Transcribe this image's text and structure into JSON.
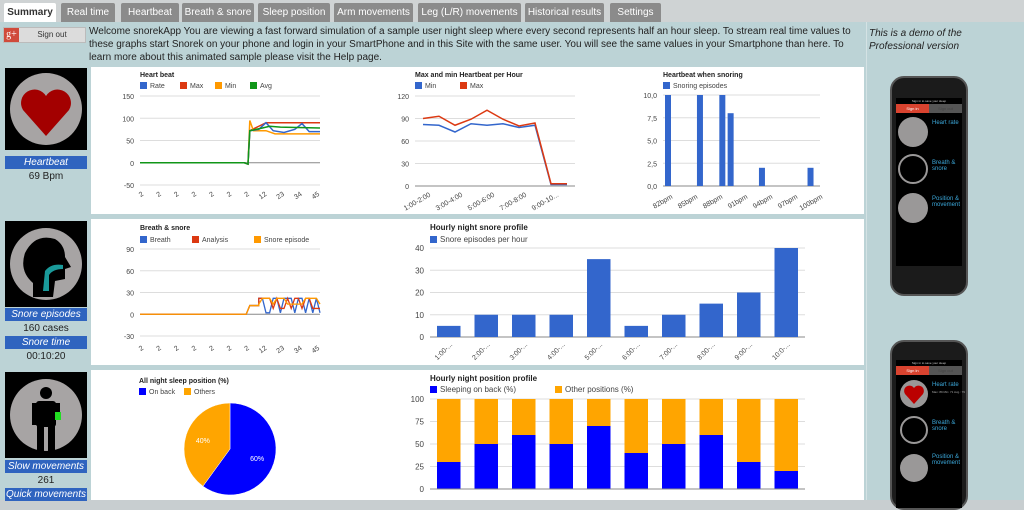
{
  "tabs": [
    {
      "label": "Summary",
      "active": true
    },
    {
      "label": "Real time"
    },
    {
      "label": "Heartbeat"
    },
    {
      "label": "Breath & snore"
    },
    {
      "label": "Sleep position"
    },
    {
      "label": "Arm movements"
    },
    {
      "label": "Leg (L/R) movements"
    },
    {
      "label": "Historical results"
    },
    {
      "label": "Settings"
    }
  ],
  "auth": {
    "gplus": "g+",
    "signout": "Sign out"
  },
  "welcome": "Welcome snorekApp You are viewing a fast forward simulation of a sample user night sleep where every second represents half an hour sleep. To stream real time values to these graphs start Snorek on your phone and login in your SmartPhone and in this Site with the same user. You will see the same values in your Smartphone than here. To learn more about this animated sample please visit the Help page.",
  "demo_note": "This is a demo of the Professional version",
  "stats": {
    "heartbeat_label": "Heartbeat",
    "heartbeat_value": "69 Bpm",
    "snore_label": "Snore episodes",
    "snore_value": "160 cases",
    "snore_time_label": "Snore time",
    "snore_time_value": "00:10:20",
    "slow_label": "Slow movements",
    "slow_value": "261",
    "quick_label": "Quick movements"
  },
  "colors": {
    "blue": "#3366cc",
    "red": "#dc3912",
    "orange": "#ff9900",
    "green": "#109618",
    "pure_blue": "#0000ff",
    "pie_orange": "#ffa500"
  },
  "chart_data": [
    {
      "type": "line",
      "title": "Heart beat",
      "series": [
        {
          "name": "Rate"
        },
        {
          "name": "Max"
        },
        {
          "name": "Min"
        },
        {
          "name": "Avg"
        }
      ],
      "yticks": [
        "150",
        "100",
        "50",
        "0",
        "-50"
      ],
      "ylim": [
        -50,
        150
      ],
      "xticks": [
        "2",
        "2",
        "2",
        "2",
        "2",
        "2",
        "2",
        "12",
        "23",
        "34",
        "45"
      ]
    },
    {
      "type": "line",
      "title": "Max and min Heartbeat per Hour",
      "categories": [
        "1:00-2:00",
        "2:00-3:00",
        "3:00-4:00",
        "4:00-5:00",
        "5:00-6:00",
        "6:00-7:00",
        "7:00-8:00",
        "8:00-9:00",
        "9:00-10:00",
        "10:00-11:00"
      ],
      "xticks": [
        "1:00-2:00",
        "3:00-4:00",
        "5:00-6:00",
        "7:00-8:00",
        "9:00-10..."
      ],
      "series": [
        {
          "name": "Min",
          "values": [
            82,
            81,
            72,
            83,
            81,
            83,
            78,
            81,
            2,
            2
          ]
        },
        {
          "name": "Max",
          "values": [
            90,
            93,
            81,
            89,
            101,
            89,
            80,
            84,
            3,
            3
          ]
        }
      ],
      "yticks": [
        "120",
        "90",
        "60",
        "30",
        "0"
      ],
      "ylim": [
        0,
        120
      ]
    },
    {
      "type": "bar",
      "title": "Heartbeat when snoring",
      "legend": "Snoring episodes",
      "categories": [
        "82bpm",
        "85bpm",
        "88bpm",
        "91bpm",
        "94bpm",
        "97bpm",
        "100bpm"
      ],
      "bars": [
        {
          "x": 82,
          "v": 10
        },
        {
          "x": 87,
          "v": 10
        },
        {
          "x": 90.5,
          "v": 10
        },
        {
          "x": 91.8,
          "v": 8
        },
        {
          "x": 96.7,
          "v": 2
        },
        {
          "x": 104.3,
          "v": 2
        }
      ],
      "yticks": [
        "10,0",
        "7,5",
        "5,0",
        "2,5",
        "0,0"
      ],
      "ylim": [
        0,
        10
      ]
    },
    {
      "type": "line",
      "title": "Breath & snore",
      "series": [
        {
          "name": "Breath"
        },
        {
          "name": "Analysis"
        },
        {
          "name": "Snore episode"
        }
      ],
      "yticks": [
        "90",
        "60",
        "30",
        "0",
        "-30"
      ],
      "ylim": [
        -30,
        90
      ],
      "xticks": [
        "2",
        "2",
        "2",
        "2",
        "2",
        "2",
        "2",
        "12",
        "23",
        "34",
        "45"
      ]
    },
    {
      "type": "bar",
      "title": "Hourly night snore profile",
      "legend": "Snore episodes per hour",
      "categories": [
        "1:00-...",
        "2:00-...",
        "3:00-...",
        "4:00-...",
        "5:00-...",
        "6:00-...",
        "7:00-...",
        "8:00-...",
        "9:00-...",
        "10:0-..."
      ],
      "values": [
        5,
        10,
        10,
        10,
        35,
        5,
        10,
        15,
        20,
        40
      ],
      "yticks": [
        "40",
        "30",
        "20",
        "10",
        "0"
      ],
      "ylim": [
        0,
        40
      ]
    },
    {
      "type": "pie",
      "title": "All night sleep position (%)",
      "slices": [
        {
          "name": "On back",
          "value": 60,
          "label": "60%"
        },
        {
          "name": "Others",
          "value": 40,
          "label": "40%"
        }
      ]
    },
    {
      "type": "bar",
      "title": "Hourly night position profile",
      "series": [
        {
          "name": "Sleeping on back (%)",
          "values": [
            30,
            50,
            60,
            50,
            70,
            40,
            50,
            60,
            30,
            20
          ]
        },
        {
          "name": "Other positions (%)",
          "values": [
            70,
            50,
            40,
            50,
            30,
            60,
            50,
            40,
            70,
            80
          ]
        }
      ],
      "yticks": [
        "100",
        "75",
        "50",
        "25",
        "0"
      ],
      "ylim": [
        0,
        100
      ]
    }
  ],
  "phone": {
    "signin_prompt": "Sign in to save your sleep",
    "signin": "Sign in",
    "signout": "Sign out",
    "heart": "Heart rate",
    "breath": "Breath & snore",
    "position": "Position & movement",
    "heart_desc2": "Max: 89 Min: 71 Avg.: 79"
  }
}
